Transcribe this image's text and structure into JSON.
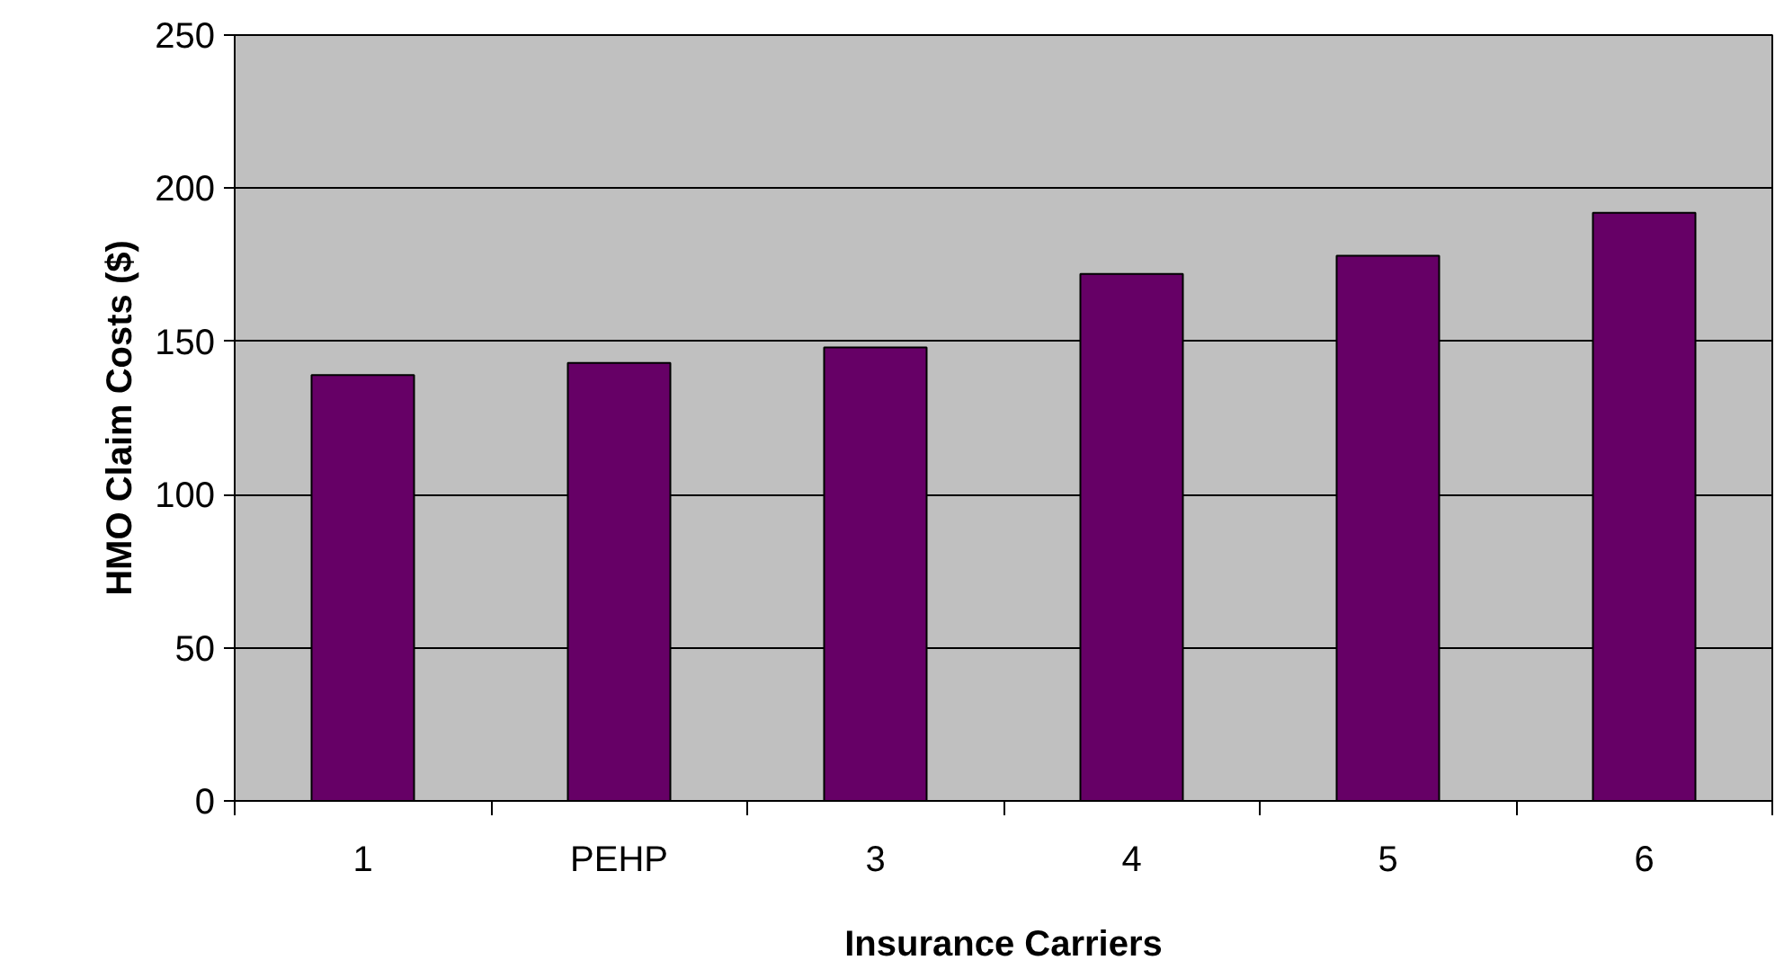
{
  "chart_data": {
    "type": "bar",
    "xlabel": "Insurance Carriers",
    "ylabel": "HMO Claim Costs ($)",
    "categories": [
      "1",
      "PEHP",
      "3",
      "4",
      "5",
      "6"
    ],
    "values": [
      139,
      143,
      148,
      172,
      178,
      192
    ],
    "color": "#660066",
    "ylim": [
      0,
      250
    ],
    "yticks": [
      0,
      50,
      100,
      150,
      200,
      250
    ],
    "grid": "y"
  }
}
